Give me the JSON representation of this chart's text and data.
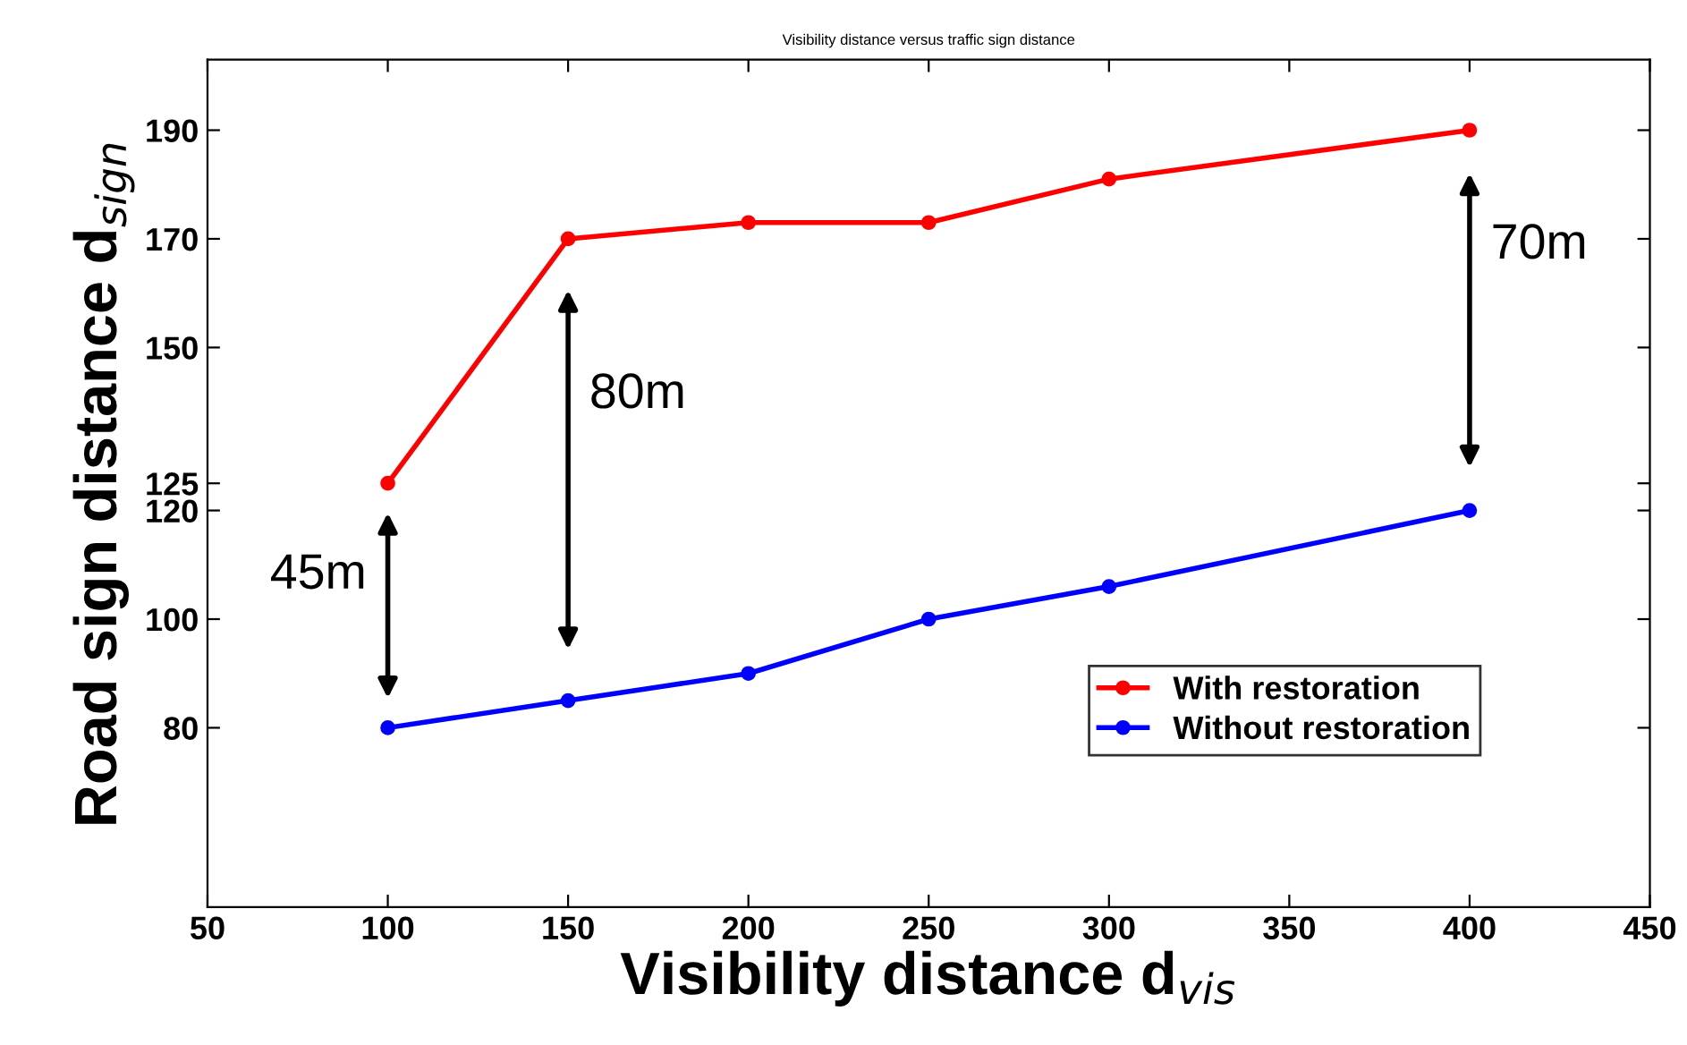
{
  "chart_data": {
    "type": "line",
    "title": "Visibility distance versus traffic sign distance",
    "xlabel": "Visibility distance d$_{vis}$",
    "ylabel": "Road sign distance d$_{sign}$",
    "x": [
      100,
      150,
      200,
      250,
      300,
      400
    ],
    "series": [
      {
        "name": "With restoration",
        "color": "#ff0000",
        "values": [
          125,
          170,
          173,
          173,
          181,
          190
        ]
      },
      {
        "name": "Without restoration",
        "color": "#0000ff",
        "values": [
          80,
          85,
          90,
          100,
          106,
          120
        ]
      }
    ],
    "annotations": [
      {
        "text": "45m",
        "x": 100,
        "y": 125
      },
      {
        "text": "80m",
        "x": 150,
        "y": 170
      },
      {
        "text": "70m",
        "x": 400,
        "y": 190
      }
    ],
    "xlim": [
      50,
      450
    ],
    "xticks": [
      50,
      100,
      150,
      200,
      250,
      300,
      350,
      400,
      450
    ],
    "ylim": [
      47,
      203
    ],
    "yticks": [
      80,
      100,
      120,
      125,
      150,
      170,
      190
    ],
    "legend": "bottom right",
    "marker": "circle",
    "line_style": "solid",
    "grid": false
  }
}
